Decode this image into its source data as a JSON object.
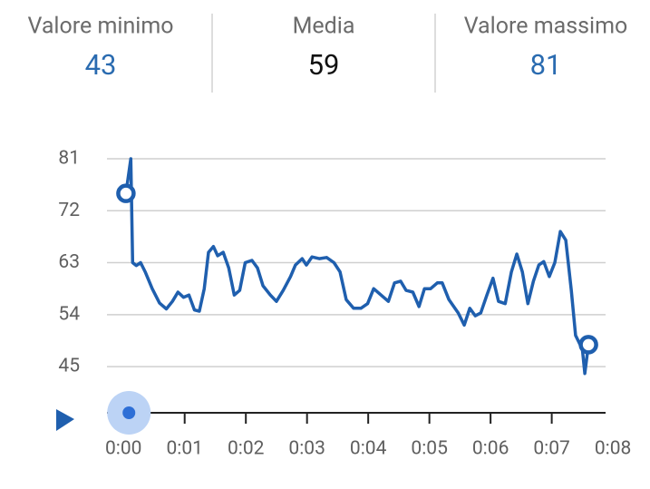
{
  "stats": [
    {
      "label": "Valore minimo",
      "value": 43,
      "color": "#2a6bb0"
    },
    {
      "label": "Media",
      "value": 59,
      "color": "#111111"
    },
    {
      "label": "Valore massimo",
      "value": 81,
      "color": "#2a6bb0"
    }
  ],
  "chart_data": {
    "type": "line",
    "x": [
      0.04,
      0.12,
      0.15,
      0.21,
      0.28,
      0.36,
      0.47,
      0.59,
      0.7,
      0.8,
      0.89,
      0.98,
      1.07,
      1.16,
      1.24,
      1.32,
      1.39,
      1.47,
      1.54,
      1.63,
      1.72,
      1.81,
      1.9,
      1.99,
      2.1,
      2.19,
      2.28,
      2.4,
      2.5,
      2.61,
      2.73,
      2.81,
      2.92,
      2.99,
      3.08,
      3.2,
      3.32,
      3.44,
      3.54,
      3.64,
      3.76,
      3.88,
      3.99,
      4.09,
      4.21,
      4.33,
      4.43,
      4.53,
      4.62,
      4.73,
      4.83,
      4.92,
      5.02,
      5.13,
      5.21,
      5.32,
      5.47,
      5.57,
      5.66,
      5.75,
      5.84,
      5.94,
      6.04,
      6.13,
      6.24,
      6.34,
      6.43,
      6.52,
      6.61,
      6.7,
      6.79,
      6.87,
      6.96,
      7.05,
      7.14,
      7.23,
      7.32,
      7.39,
      7.5,
      7.54,
      7.6
    ],
    "values": [
      75,
      81,
      63,
      62.5,
      63,
      61.3,
      58.5,
      56,
      55,
      56.3,
      57.9,
      57,
      57.4,
      54.8,
      54.6,
      58.5,
      64.8,
      65.8,
      64.2,
      64.8,
      62.1,
      57.4,
      58.2,
      63,
      63.4,
      62.1,
      59,
      57.4,
      56.3,
      58.2,
      60.6,
      62.6,
      63.7,
      62.6,
      64,
      63.7,
      63.9,
      63,
      61.4,
      56.6,
      55.1,
      55.1,
      55.9,
      58.5,
      57.4,
      56.3,
      59.5,
      59.8,
      58.2,
      57.9,
      55.4,
      58.5,
      58.5,
      59.5,
      59.5,
      56.6,
      54.3,
      52.2,
      55.1,
      53.8,
      54.3,
      57.4,
      60.3,
      56.3,
      55.9,
      61.4,
      64.5,
      61.4,
      55.9,
      59.8,
      62.6,
      63.2,
      60.6,
      63,
      68.4,
      66.9,
      58.2,
      50.4,
      48,
      43.8,
      48.8
    ],
    "color": "#1f5fae",
    "xlim": [
      -0.27,
      7.88
    ],
    "ylim": [
      37,
      81
    ],
    "xticks": [
      {
        "value": 0,
        "label": "0:00"
      },
      {
        "value": 1,
        "label": "0:01"
      },
      {
        "value": 2,
        "label": "0:02"
      },
      {
        "value": 3,
        "label": "0:03"
      },
      {
        "value": 4,
        "label": "0:04"
      },
      {
        "value": 5,
        "label": "0:05"
      },
      {
        "value": 6,
        "label": "0:06"
      },
      {
        "value": 7,
        "label": "0:07"
      },
      {
        "value": 8,
        "label": "0:08"
      }
    ],
    "yticks": [
      45,
      54,
      63,
      72,
      81
    ],
    "grid": true
  }
}
